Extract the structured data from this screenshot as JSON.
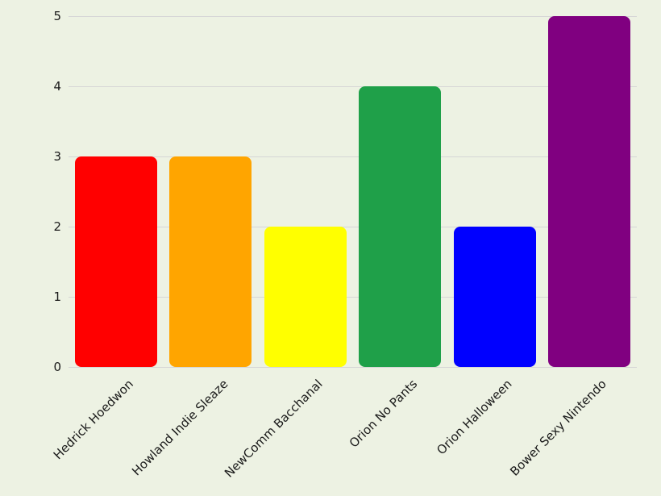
{
  "chart_data": {
    "type": "bar",
    "title": "",
    "xlabel": "",
    "ylabel": "",
    "categories": [
      "Hedrick Hoedwon",
      "Howland Indie Sleaze",
      "NewComm Bacchanal",
      "Orion No Pants",
      "Orion Halloween",
      "Bower Sexy Nintendo"
    ],
    "values": [
      3,
      3,
      2,
      4,
      2,
      5
    ],
    "bar_colors": [
      "#ff0000",
      "#ffa500",
      "#ffff00",
      "#1fa049",
      "#0000ff",
      "#800080"
    ],
    "ylim": [
      0,
      5
    ],
    "yticks": [
      0,
      1,
      2,
      3,
      4,
      5
    ],
    "grid": "horizontal",
    "legend": "none",
    "background_color": "#edf2e3",
    "gridline_color": "#d6d6d6",
    "text_color": "#1a1a1a"
  }
}
